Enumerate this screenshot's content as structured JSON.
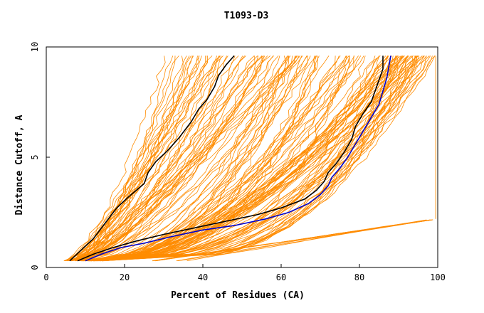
{
  "chart_data": {
    "type": "line",
    "title": "T1093-D3",
    "xlabel": "Percent of Residues (CA)",
    "ylabel": "Distance Cutoff, A",
    "xlim": [
      0,
      100
    ],
    "ylim": [
      0,
      10
    ],
    "x_ticks": [
      "0",
      "20",
      "40",
      "60",
      "80",
      "100"
    ],
    "y_ticks": [
      "0",
      "5",
      "10"
    ],
    "grid": false,
    "colors": {
      "background_models": "#ff8c00",
      "highlight_1": "#000000",
      "highlight_2": "#000000",
      "highlight_3": "#0000cc",
      "frame": "#000000"
    },
    "highlighted_series": [
      {
        "color": "#000000",
        "x": [
          6,
          9,
          12,
          15,
          18,
          21,
          23,
          25,
          26,
          28,
          31,
          34,
          37,
          39,
          41,
          43,
          44,
          46,
          48
        ],
        "y": [
          0.3,
          0.8,
          1.3,
          2.0,
          2.7,
          3.2,
          3.5,
          3.8,
          4.3,
          4.8,
          5.3,
          5.9,
          6.6,
          7.2,
          7.6,
          8.2,
          8.7,
          9.2,
          9.6
        ]
      },
      {
        "color": "#000000",
        "x": [
          8,
          12,
          17,
          23,
          30,
          38,
          46,
          54,
          60,
          66,
          69,
          71,
          72,
          74,
          76,
          78,
          79,
          81,
          83,
          84,
          85,
          86,
          86
        ],
        "y": [
          0.3,
          0.6,
          0.9,
          1.2,
          1.5,
          1.8,
          2.1,
          2.4,
          2.7,
          3.1,
          3.5,
          3.9,
          4.3,
          4.7,
          5.2,
          5.8,
          6.4,
          7.0,
          7.5,
          8.0,
          8.5,
          9.0,
          9.6
        ]
      },
      {
        "color": "#0000cc",
        "x": [
          10,
          14,
          19,
          25,
          32,
          40,
          48,
          56,
          62,
          67,
          70,
          72,
          73,
          75,
          77,
          79,
          81,
          83,
          85,
          86,
          87,
          88
        ],
        "y": [
          0.3,
          0.6,
          0.9,
          1.1,
          1.4,
          1.7,
          1.9,
          2.2,
          2.5,
          2.9,
          3.3,
          3.7,
          4.1,
          4.5,
          5.0,
          5.6,
          6.2,
          6.8,
          7.4,
          8.0,
          8.6,
          9.6
        ]
      }
    ],
    "background_series": {
      "count": 150,
      "clusters": [
        {
          "name_hint": "steep",
          "share": 0.35,
          "x_start": [
            5,
            9
          ],
          "x_end": [
            30,
            65
          ]
        },
        {
          "name_hint": "wide",
          "share": 0.35,
          "x_start": [
            8,
            14
          ],
          "x_end": [
            55,
            100
          ]
        },
        {
          "name_hint": "right",
          "share": 0.25,
          "x_start": [
            10,
            15
          ],
          "x_end": [
            85,
            100
          ]
        },
        {
          "name_hint": "bottom",
          "share": 0.05,
          "x_start": [
            25,
            40
          ],
          "x_end": [
            99,
            100
          ]
        }
      ]
    }
  }
}
